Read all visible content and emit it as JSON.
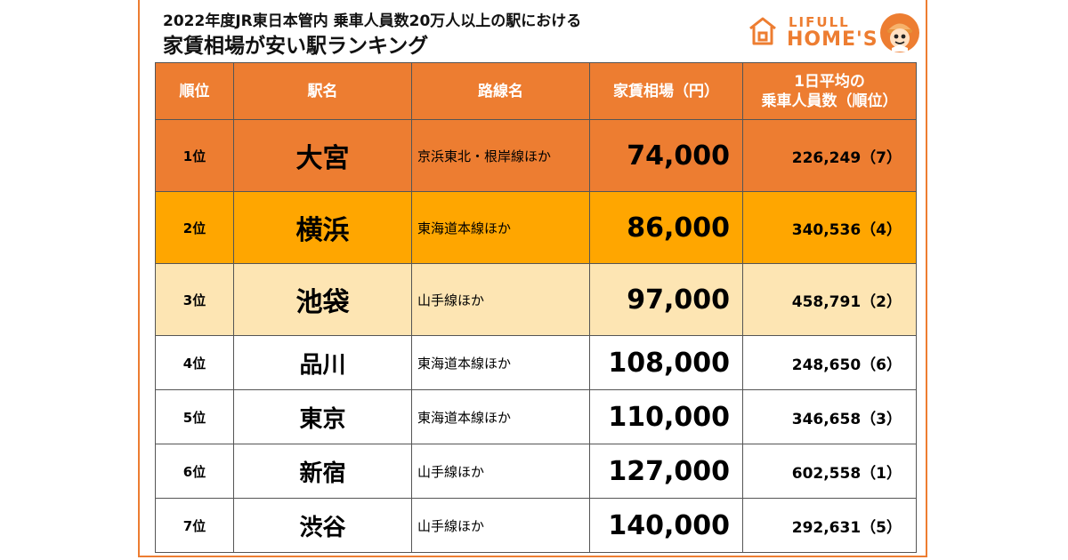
{
  "header": {
    "subtitle": "2022年度JR東日本管内 乗車人員数20万人以上の駅における",
    "title": "家賃相場が安い駅ランキング"
  },
  "logo": {
    "top": "LIFULL",
    "bottom": "HOME'S"
  },
  "colors": {
    "accent": "#ed7d31",
    "rank1": "#ed7d31",
    "rank2": "#ffa600",
    "rank3": "#fde5b3"
  },
  "table": {
    "headers": [
      "順位",
      "駅名",
      "路線名",
      "家賃相場（円）",
      "1日平均の",
      "乗車人員数（順位）"
    ],
    "rows": [
      {
        "rank": "1位",
        "station": "大宮",
        "line": "京浜東北・根岸線ほか",
        "rent": "74,000",
        "riders": "226,249（7）"
      },
      {
        "rank": "2位",
        "station": "横浜",
        "line": "東海道本線ほか",
        "rent": "86,000",
        "riders": "340,536（4）"
      },
      {
        "rank": "3位",
        "station": "池袋",
        "line": "山手線ほか",
        "rent": "97,000",
        "riders": "458,791（2）"
      },
      {
        "rank": "4位",
        "station": "品川",
        "line": "東海道本線ほか",
        "rent": "108,000",
        "riders": "248,650（6）"
      },
      {
        "rank": "5位",
        "station": "東京",
        "line": "東海道本線ほか",
        "rent": "110,000",
        "riders": "346,658（3）"
      },
      {
        "rank": "6位",
        "station": "新宿",
        "line": "山手線ほか",
        "rent": "127,000",
        "riders": "602,558（1）"
      },
      {
        "rank": "7位",
        "station": "渋谷",
        "line": "山手線ほか",
        "rent": "140,000",
        "riders": "292,631（5）"
      }
    ]
  }
}
